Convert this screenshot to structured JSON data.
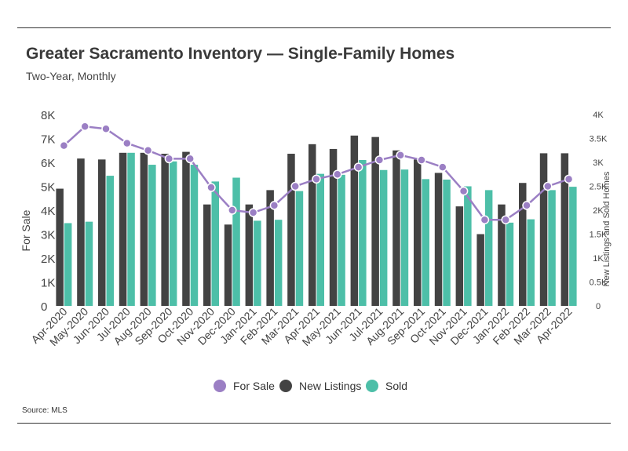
{
  "header": {
    "title": "Greater Sacramento Inventory — Single-Family Homes",
    "subtitle": "Two-Year, Monthly"
  },
  "footer": {
    "source": "Source:  MLS"
  },
  "colors": {
    "for_sale": "#9b7fc4",
    "new_listings": "#434343",
    "sold": "#4dbfa8",
    "axis_text": "#444444"
  },
  "chart_data": {
    "type": "bar",
    "categories": [
      "Apr-2020",
      "May-2020",
      "Jun-2020",
      "Jul-2020",
      "Aug-2020",
      "Sep-2020",
      "Oct-2020",
      "Nov-2020",
      "Dec-2020",
      "Jan-2021",
      "Feb-2021",
      "Mar-2021",
      "Apr-2021",
      "May-2021",
      "Jun-2021",
      "Jul-2021",
      "Aug-2021",
      "Sep-2021",
      "Oct-2021",
      "Nov-2021",
      "Dec-2021",
      "Jan-2022",
      "Feb-2022",
      "Mar-2022",
      "Apr-2022"
    ],
    "series": [
      {
        "name": "For Sale",
        "type": "line",
        "axis": "left",
        "values": [
          6700,
          7500,
          7400,
          6800,
          6500,
          6150,
          6150,
          4950,
          4000,
          3900,
          4200,
          5000,
          5300,
          5500,
          5800,
          6100,
          6300,
          6100,
          5800,
          4800,
          3600,
          3600,
          4200,
          5000,
          5300
        ]
      },
      {
        "name": "New Listings",
        "type": "bar",
        "axis": "right",
        "values": [
          2450,
          3080,
          3060,
          3200,
          3200,
          3180,
          3220,
          2120,
          1700,
          2120,
          2420,
          3180,
          3380,
          3280,
          3560,
          3530,
          3250,
          3060,
          2780,
          2080,
          1500,
          2120,
          2570,
          3190,
          3190
        ]
      },
      {
        "name": "Sold",
        "type": "bar",
        "axis": "right",
        "values": [
          1730,
          1760,
          2720,
          3200,
          2950,
          3020,
          2950,
          2600,
          2680,
          1780,
          1800,
          2400,
          2760,
          2740,
          3050,
          2840,
          2850,
          2650,
          2640,
          2500,
          2420,
          1740,
          1810,
          2420,
          2490
        ]
      }
    ],
    "left_axis": {
      "label": "For Sale",
      "range": [
        0,
        8000
      ],
      "ticks": [
        0,
        1000,
        2000,
        3000,
        4000,
        5000,
        6000,
        7000,
        8000
      ],
      "tick_labels": [
        "0",
        "1K",
        "2K",
        "3K",
        "4K",
        "5K",
        "6K",
        "7K",
        "8K"
      ]
    },
    "right_axis": {
      "label": "New Listings and Sold Homes",
      "range": [
        0,
        4000
      ],
      "ticks": [
        0,
        500,
        1000,
        1500,
        2000,
        2500,
        3000,
        3500,
        4000
      ],
      "tick_labels": [
        "0",
        "0.5K",
        "1K",
        "1.5K",
        "2K",
        "2.5K",
        "3K",
        "3.5K",
        "4K"
      ]
    },
    "legend": {
      "position": "bottom",
      "items": [
        {
          "name": "For Sale",
          "marker": "circle",
          "color": "#9b7fc4"
        },
        {
          "name": "New Listings",
          "marker": "circle",
          "color": "#434343"
        },
        {
          "name": "Sold",
          "marker": "circle",
          "color": "#4dbfa8"
        }
      ]
    },
    "grid": false
  }
}
